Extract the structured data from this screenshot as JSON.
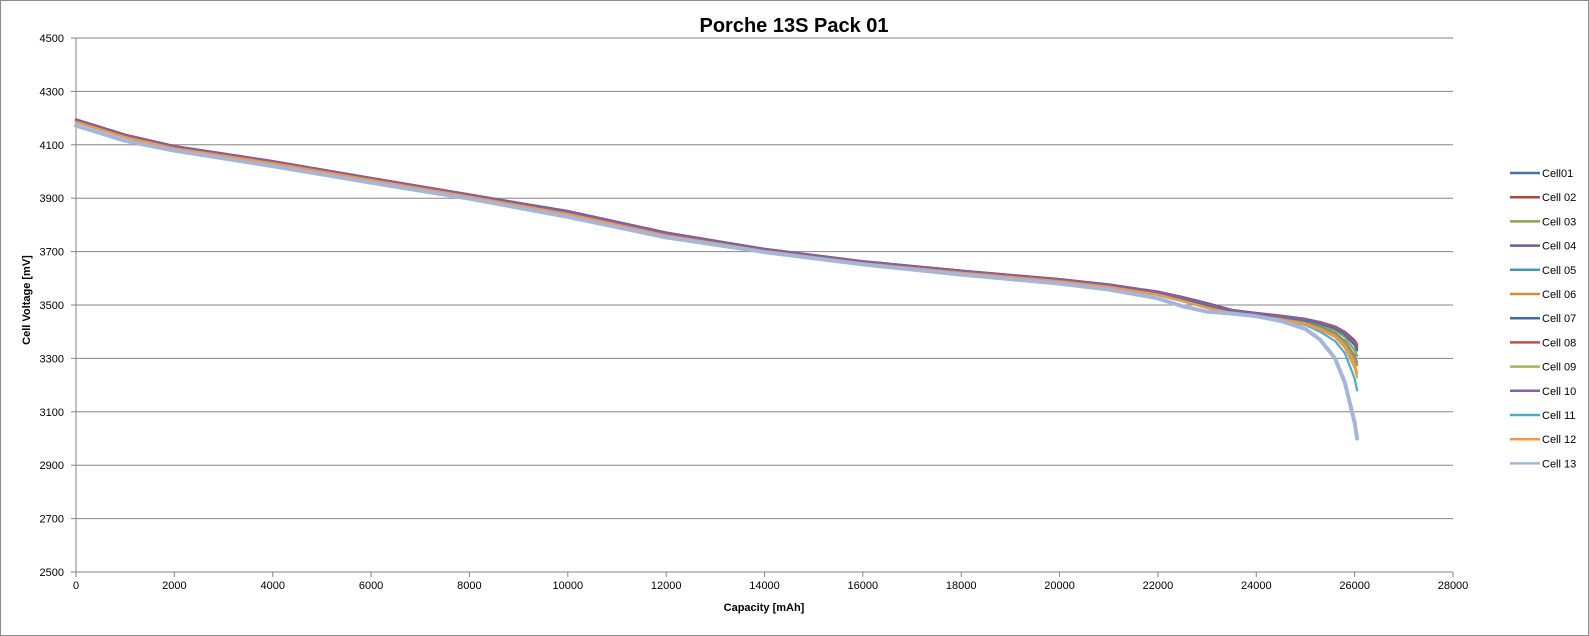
{
  "chart_data": {
    "type": "line",
    "title": "Porche 13S Pack 01",
    "xlabel": "Capacity  [mAh]",
    "ylabel": "Cell Voltage  [mV]",
    "xlim": [
      0,
      28000
    ],
    "ylim": [
      2500,
      4500
    ],
    "xticks": [
      0,
      2000,
      4000,
      6000,
      8000,
      10000,
      12000,
      14000,
      16000,
      18000,
      20000,
      22000,
      24000,
      26000,
      28000
    ],
    "yticks": [
      2500,
      2700,
      2900,
      3100,
      3300,
      3500,
      3700,
      3900,
      4100,
      4300,
      4500
    ],
    "grid": "horizontal major gridlines",
    "legend_position": "right",
    "x": [
      0,
      1000,
      2000,
      4000,
      6000,
      8000,
      10000,
      12000,
      14000,
      16000,
      18000,
      20000,
      21000,
      22000,
      22500,
      23000,
      23500,
      24000,
      24500,
      25000,
      25300,
      25600,
      25800,
      26000,
      26050
    ],
    "series": [
      {
        "name": "Cell01",
        "color": "#4572A7",
        "values": [
          4192,
          4135,
          4093,
          4037,
          3974,
          3912,
          3848,
          3768,
          3708,
          3662,
          3627,
          3595,
          3574,
          3546,
          3525,
          3500,
          3478,
          3468,
          3458,
          3445,
          3432,
          3415,
          3395,
          3360,
          3345
        ]
      },
      {
        "name": "Cell 02",
        "color": "#AA4643",
        "values": [
          4195,
          4138,
          4095,
          4039,
          3976,
          3914,
          3850,
          3770,
          3710,
          3664,
          3629,
          3597,
          3576,
          3549,
          3528,
          3503,
          3480,
          3470,
          3460,
          3448,
          3436,
          3420,
          3400,
          3368,
          3352
        ]
      },
      {
        "name": "Cell 03",
        "color": "#89A54E",
        "values": [
          4190,
          4133,
          4091,
          4035,
          3972,
          3910,
          3846,
          3766,
          3706,
          3660,
          3625,
          3593,
          3572,
          3544,
          3522,
          3497,
          3475,
          3465,
          3455,
          3440,
          3425,
          3405,
          3380,
          3330,
          3310
        ]
      },
      {
        "name": "Cell 04",
        "color": "#71588F",
        "values": [
          4195,
          4138,
          4095,
          4039,
          3976,
          3914,
          3852,
          3772,
          3710,
          3664,
          3629,
          3597,
          3577,
          3550,
          3530,
          3507,
          3482,
          3470,
          3460,
          3448,
          3435,
          3418,
          3395,
          3355,
          3338
        ]
      },
      {
        "name": "Cell 05",
        "color": "#4198AF",
        "values": [
          4188,
          4131,
          4089,
          4033,
          3970,
          3908,
          3843,
          3763,
          3704,
          3658,
          3623,
          3591,
          3570,
          3541,
          3518,
          3493,
          3472,
          3462,
          3450,
          3435,
          3418,
          3395,
          3365,
          3310,
          3285
        ]
      },
      {
        "name": "Cell 06",
        "color": "#DB843D",
        "values": [
          4187,
          4130,
          4088,
          4032,
          3969,
          3907,
          3842,
          3762,
          3703,
          3657,
          3622,
          3590,
          3569,
          3540,
          3517,
          3492,
          3471,
          3461,
          3448,
          3432,
          3414,
          3390,
          3358,
          3300,
          3275
        ]
      },
      {
        "name": "Cell 07",
        "color": "#3D6DA8",
        "values": [
          4191,
          4134,
          4092,
          4036,
          3973,
          3911,
          3847,
          3767,
          3707,
          3661,
          3626,
          3594,
          3573,
          3545,
          3524,
          3499,
          3477,
          3467,
          3457,
          3443,
          3430,
          3412,
          3390,
          3350,
          3330
        ]
      },
      {
        "name": "Cell 08",
        "color": "#C0504D",
        "values": [
          4193,
          4136,
          4094,
          4038,
          3975,
          3913,
          3849,
          3769,
          3709,
          3663,
          3628,
          3596,
          3575,
          3548,
          3527,
          3502,
          3479,
          3469,
          3459,
          3447,
          3434,
          3418,
          3398,
          3362,
          3347
        ]
      },
      {
        "name": "Cell 09",
        "color": "#9BBB59",
        "values": [
          4186,
          4129,
          4087,
          4031,
          3968,
          3906,
          3841,
          3761,
          3702,
          3656,
          3621,
          3589,
          3568,
          3539,
          3516,
          3491,
          3470,
          3460,
          3446,
          3429,
          3410,
          3383,
          3348,
          3280,
          3245
        ]
      },
      {
        "name": "Cell 10",
        "color": "#8064A2",
        "values": [
          4192,
          4135,
          4093,
          4037,
          3974,
          3912,
          3849,
          3769,
          3708,
          3662,
          3627,
          3595,
          3575,
          3547,
          3527,
          3503,
          3479,
          3468,
          3458,
          3446,
          3433,
          3417,
          3396,
          3360,
          3342
        ]
      },
      {
        "name": "Cell 11",
        "color": "#4BACC6",
        "values": [
          4185,
          4128,
          4086,
          4030,
          3967,
          3905,
          3840,
          3760,
          3701,
          3655,
          3620,
          3588,
          3567,
          3538,
          3514,
          3489,
          3468,
          3458,
          3443,
          3425,
          3400,
          3365,
          3320,
          3225,
          3180
        ]
      },
      {
        "name": "Cell 12",
        "color": "#F79646",
        "values": [
          4186,
          4129,
          4087,
          4031,
          3968,
          3906,
          3841,
          3761,
          3702,
          3656,
          3621,
          3589,
          3568,
          3539,
          3515,
          3490,
          3469,
          3459,
          3445,
          3428,
          3408,
          3380,
          3340,
          3265,
          3230
        ]
      },
      {
        "name": "Cell 13",
        "color": "#A5B6D8",
        "values": [
          4172,
          4115,
          4078,
          4020,
          3958,
          3898,
          3830,
          3753,
          3698,
          3652,
          3614,
          3580,
          3558,
          3525,
          3495,
          3475,
          3468,
          3458,
          3440,
          3410,
          3370,
          3300,
          3210,
          3060,
          3000
        ]
      }
    ]
  }
}
